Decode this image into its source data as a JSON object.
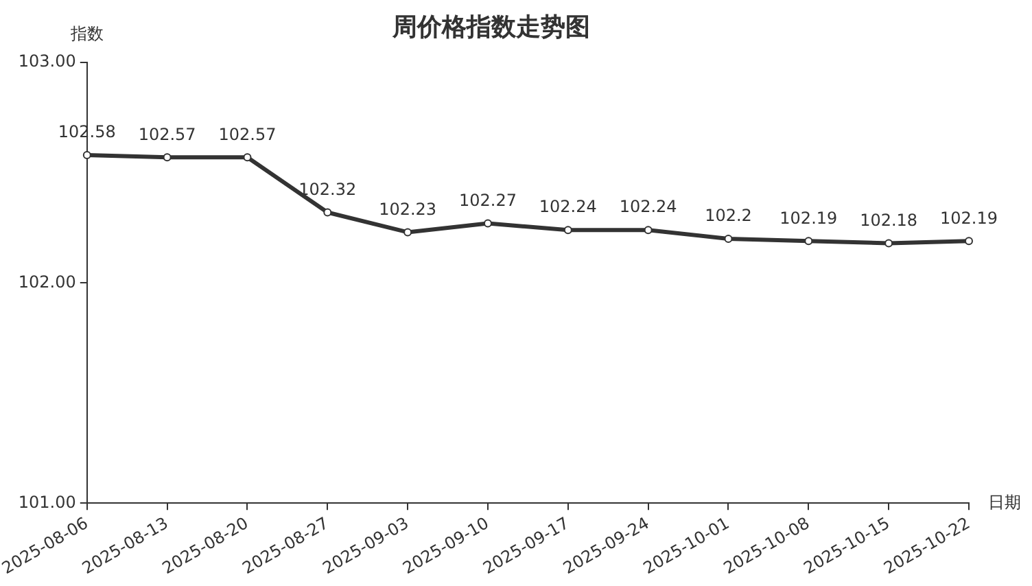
{
  "chart_data": {
    "type": "line",
    "title": "周价格指数走势图",
    "ylabel": "指数",
    "xlabel": "日期",
    "categories": [
      "2025-08-06",
      "2025-08-13",
      "2025-08-20",
      "2025-08-27",
      "2025-09-03",
      "2025-09-10",
      "2025-09-17",
      "2025-09-24",
      "2025-10-01",
      "2025-10-08",
      "2025-10-15",
      "2025-10-22"
    ],
    "series": [
      {
        "color": "#333333",
        "values": [
          102.58,
          102.57,
          102.57,
          102.32,
          102.23,
          102.27,
          102.24,
          102.24,
          102.2,
          102.19,
          102.18,
          102.19
        ]
      }
    ],
    "ylim": [
      101,
      103
    ],
    "yticks": [
      {
        "value": 101,
        "label": "101.00"
      },
      {
        "value": 102,
        "label": "102.00"
      },
      {
        "value": 103,
        "label": "103.00"
      }
    ],
    "grid": false,
    "legend": false,
    "marker": "circle",
    "line_style": "solid",
    "data_labels": true
  }
}
